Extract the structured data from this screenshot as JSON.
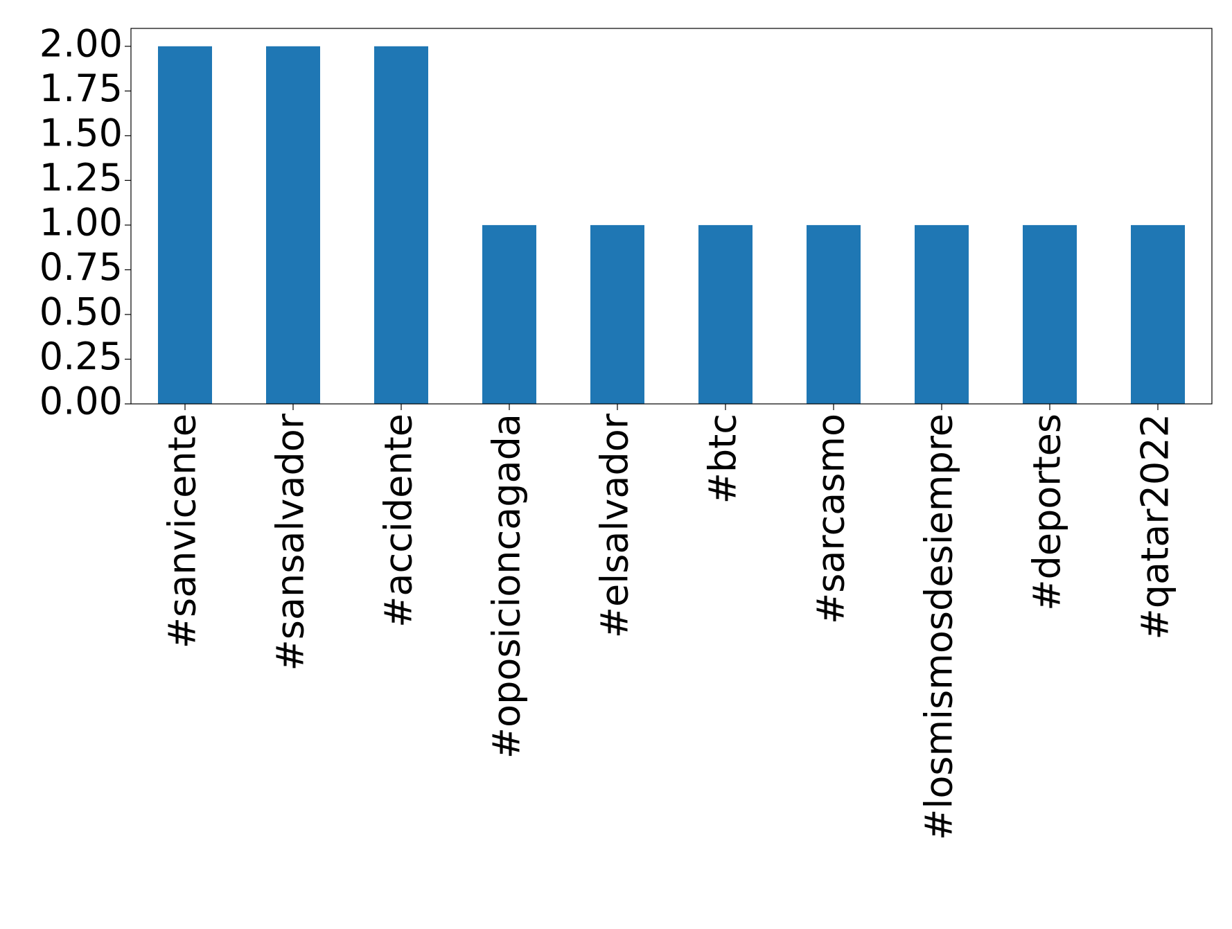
{
  "chart_data": {
    "type": "bar",
    "categories": [
      "#sanvicente",
      "#sansalvador",
      "#accidente",
      "#oposicioncagada",
      "#elsalvador",
      "#btc",
      "#sarcasmo",
      "#losmismosdesiempre",
      "#deportes",
      "#qatar2022"
    ],
    "values": [
      2,
      2,
      2,
      1,
      1,
      1,
      1,
      1,
      1,
      1
    ],
    "color": "#1f77b4",
    "ylim": [
      0,
      2.1
    ],
    "yticks": [
      {
        "value": 0,
        "label": "0.00"
      },
      {
        "value": 0.25,
        "label": "0.25"
      },
      {
        "value": 0.5,
        "label": "0.50"
      },
      {
        "value": 0.75,
        "label": "0.75"
      },
      {
        "value": 1,
        "label": "1.00"
      },
      {
        "value": 1.25,
        "label": "1.25"
      },
      {
        "value": 1.5,
        "label": "1.50"
      },
      {
        "value": 1.75,
        "label": "1.75"
      },
      {
        "value": 2,
        "label": "2.00"
      }
    ],
    "grid": false
  }
}
